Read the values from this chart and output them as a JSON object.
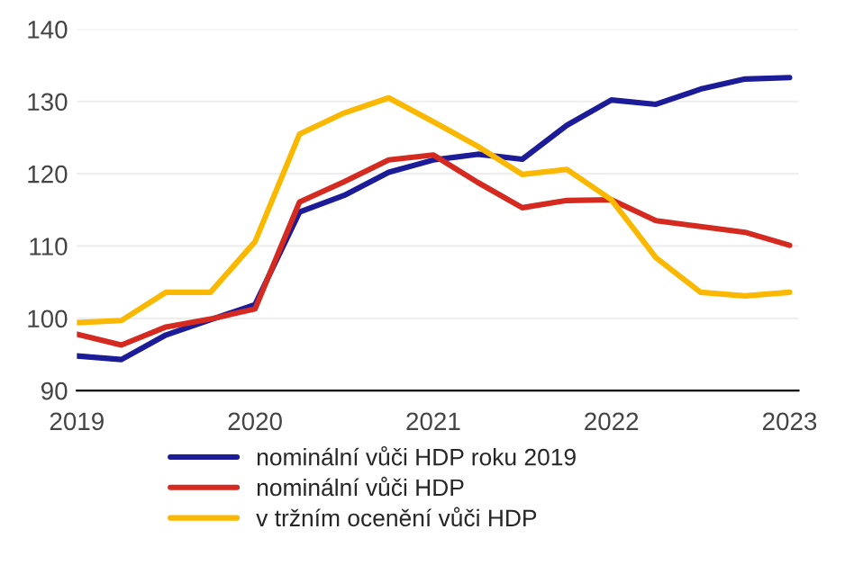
{
  "chart_data": {
    "type": "line",
    "x": [
      2019.0,
      2019.25,
      2019.5,
      2019.75,
      2020.0,
      2020.25,
      2020.5,
      2020.75,
      2021.0,
      2021.25,
      2021.5,
      2021.75,
      2022.0,
      2022.25,
      2022.5,
      2022.75,
      2023.0
    ],
    "series": [
      {
        "name": "nominální vůči HDP roku 2019",
        "color": "#1c1c99",
        "values": [
          94.8,
          94.3,
          97.7,
          99.8,
          101.9,
          114.7,
          117.0,
          120.2,
          121.9,
          122.7,
          122.0,
          126.7,
          130.2,
          129.6,
          131.7,
          133.1,
          133.3
        ]
      },
      {
        "name": "nominální vůči HDP",
        "color": "#d42a20",
        "values": [
          97.8,
          96.3,
          98.8,
          99.9,
          101.3,
          116.1,
          118.9,
          121.9,
          122.6,
          118.8,
          115.3,
          116.3,
          116.4,
          113.5,
          112.7,
          111.9,
          110.1
        ]
      },
      {
        "name": "v tržním ocenění vůči HDP",
        "color": "#fbb800",
        "values": [
          99.4,
          99.7,
          103.6,
          103.6,
          110.6,
          125.5,
          128.4,
          130.5,
          127.2,
          123.8,
          119.9,
          120.6,
          116.4,
          108.4,
          103.6,
          103.1,
          103.6
        ]
      }
    ],
    "xlim": [
      2019,
      2023.05
    ],
    "xticks": [
      {
        "value": 2019,
        "label": "2019"
      },
      {
        "value": 2020,
        "label": "2020"
      },
      {
        "value": 2021,
        "label": "2021"
      },
      {
        "value": 2022,
        "label": "2022"
      },
      {
        "value": 2023,
        "label": "2023"
      }
    ],
    "ylim": [
      90,
      140
    ],
    "yticks": [
      90,
      100,
      110,
      120,
      130,
      140
    ],
    "grid": "y",
    "legend": "bottom",
    "marker": "none",
    "line_style": "solid"
  }
}
